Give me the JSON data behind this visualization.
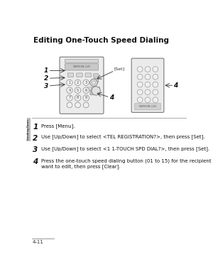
{
  "title": "Editing One-Touch Speed Dialing",
  "title_fontsize": 7.5,
  "bg_color": "#ffffff",
  "step1_num": "1",
  "step2_num": "2",
  "step3_num": "3",
  "step4_num": "4",
  "step1_text": "Press [Menu].",
  "step2_text": "Use [Up/Down] to select <TEL REGISTRATION?>, then press [Set].",
  "step3_text": "Use [Up/Down] to select <1 1-TOUCH SPD DIAL?>, then press [Set].",
  "step4_text": "Press the one-touch speed dialing button (01 to 15) for the recipient you\nwant to edit, then press [Clear].",
  "page_num": "4-11",
  "side_label": "Sending Faxes",
  "fax_label": "FAXPHONE L120",
  "set_label": "[Set]",
  "diagram_label4a": "4",
  "diagram_label4b": "4"
}
